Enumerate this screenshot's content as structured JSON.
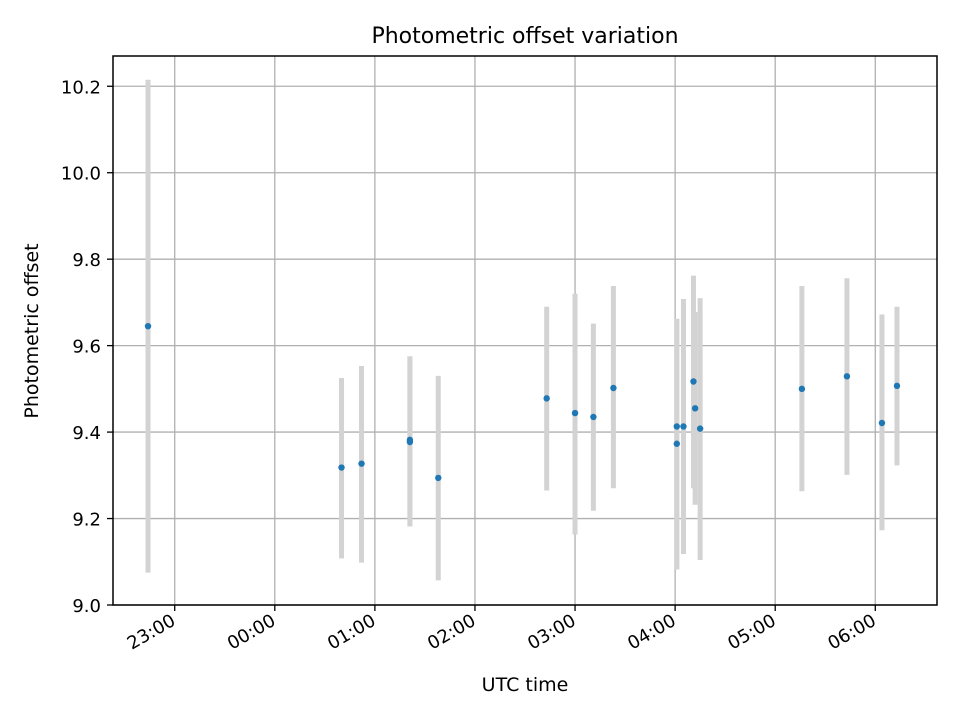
{
  "chart_data": {
    "type": "scatter",
    "title": "Photometric offset variation",
    "xlabel": "UTC time",
    "ylabel": "Photometric offset",
    "x_ticks": [
      "23:00",
      "00:00",
      "01:00",
      "02:00",
      "03:00",
      "04:00",
      "05:00",
      "06:00"
    ],
    "y_ticks": [
      "9.0",
      "9.2",
      "9.4",
      "9.6",
      "9.8",
      "10.0",
      "10.2"
    ],
    "xlim": [
      "22:23",
      "06:37"
    ],
    "ylim": [
      9.0,
      10.27
    ],
    "grid": true,
    "colors": {
      "point": "#1f77b4",
      "errorbar": "#d3d3d3",
      "grid": "#b0b0b0"
    },
    "points": [
      {
        "x": "22:44",
        "y": 9.645,
        "yerr_low": 9.075,
        "yerr_high": 10.215
      },
      {
        "x": "00:40",
        "y": 9.318,
        "yerr_low": 9.108,
        "yerr_high": 9.525
      },
      {
        "x": "00:52",
        "y": 9.327,
        "yerr_low": 9.098,
        "yerr_high": 9.553
      },
      {
        "x": "01:21",
        "y": 9.382,
        "yerr_low": 9.182,
        "yerr_high": 9.575
      },
      {
        "x": "01:21",
        "y": 9.377,
        "yerr_low": 9.182,
        "yerr_high": 9.575
      },
      {
        "x": "01:38",
        "y": 9.294,
        "yerr_low": 9.057,
        "yerr_high": 9.53
      },
      {
        "x": "02:43",
        "y": 9.478,
        "yerr_low": 9.265,
        "yerr_high": 9.69
      },
      {
        "x": "03:00",
        "y": 9.444,
        "yerr_low": 9.163,
        "yerr_high": 9.72
      },
      {
        "x": "03:11",
        "y": 9.435,
        "yerr_low": 9.218,
        "yerr_high": 9.651
      },
      {
        "x": "03:23",
        "y": 9.502,
        "yerr_low": 9.27,
        "yerr_high": 9.738
      },
      {
        "x": "04:01",
        "y": 9.413,
        "yerr_low": 9.082,
        "yerr_high": 9.662
      },
      {
        "x": "04:01",
        "y": 9.373,
        "yerr_low": 9.082,
        "yerr_high": 9.662
      },
      {
        "x": "04:05",
        "y": 9.413,
        "yerr_low": 9.118,
        "yerr_high": 9.708
      },
      {
        "x": "04:11",
        "y": 9.517,
        "yerr_low": 9.27,
        "yerr_high": 9.762
      },
      {
        "x": "04:12",
        "y": 9.455,
        "yerr_low": 9.232,
        "yerr_high": 9.678
      },
      {
        "x": "04:15",
        "y": 9.408,
        "yerr_low": 9.104,
        "yerr_high": 9.71
      },
      {
        "x": "05:16",
        "y": 9.5,
        "yerr_low": 9.263,
        "yerr_high": 9.738
      },
      {
        "x": "05:43",
        "y": 9.529,
        "yerr_low": 9.301,
        "yerr_high": 9.756
      },
      {
        "x": "06:04",
        "y": 9.421,
        "yerr_low": 9.173,
        "yerr_high": 9.672
      },
      {
        "x": "06:13",
        "y": 9.507,
        "yerr_low": 9.323,
        "yerr_high": 9.69
      }
    ]
  }
}
